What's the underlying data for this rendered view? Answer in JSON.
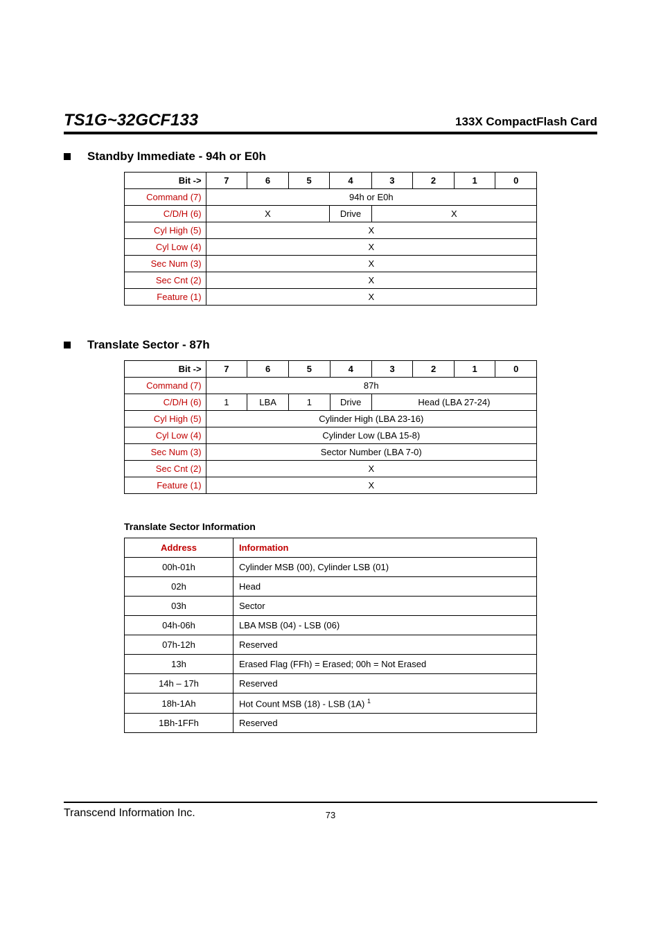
{
  "header": {
    "model": "TS1G~32GCF133",
    "product": "133X CompactFlash Card"
  },
  "section1": {
    "title": "Standby Immediate - 94h or E0h",
    "table": {
      "bit_label": "Bit ->",
      "bits": [
        "7",
        "6",
        "5",
        "4",
        "3",
        "2",
        "1",
        "0"
      ],
      "rows": [
        {
          "label": "Command (7)",
          "cells": [
            {
              "span": 8,
              "text": "94h or E0h"
            }
          ]
        },
        {
          "label": "C/D/H (6)",
          "cells": [
            {
              "span": 3,
              "text": "X"
            },
            {
              "span": 1,
              "text": "Drive"
            },
            {
              "span": 4,
              "text": "X"
            }
          ]
        },
        {
          "label": "Cyl High (5)",
          "cells": [
            {
              "span": 8,
              "text": "X"
            }
          ]
        },
        {
          "label": "Cyl Low (4)",
          "cells": [
            {
              "span": 8,
              "text": "X"
            }
          ]
        },
        {
          "label": "Sec Num (3)",
          "cells": [
            {
              "span": 8,
              "text": "X"
            }
          ]
        },
        {
          "label": "Sec Cnt (2)",
          "cells": [
            {
              "span": 8,
              "text": "X"
            }
          ]
        },
        {
          "label": "Feature (1)",
          "cells": [
            {
              "span": 8,
              "text": "X"
            }
          ]
        }
      ]
    }
  },
  "section2": {
    "title": "Translate Sector - 87h",
    "table": {
      "bit_label": "Bit ->",
      "bits": [
        "7",
        "6",
        "5",
        "4",
        "3",
        "2",
        "1",
        "0"
      ],
      "rows": [
        {
          "label": "Command (7)",
          "cells": [
            {
              "span": 8,
              "text": "87h"
            }
          ]
        },
        {
          "label": "C/D/H (6)",
          "cells": [
            {
              "span": 1,
              "text": "1"
            },
            {
              "span": 1,
              "text": "LBA"
            },
            {
              "span": 1,
              "text": "1"
            },
            {
              "span": 1,
              "text": "Drive"
            },
            {
              "span": 4,
              "text": "Head (LBA 27-24)"
            }
          ]
        },
        {
          "label": "Cyl High (5)",
          "cells": [
            {
              "span": 8,
              "text": "Cylinder High (LBA 23-16)"
            }
          ]
        },
        {
          "label": "Cyl Low (4)",
          "cells": [
            {
              "span": 8,
              "text": "Cylinder Low (LBA 15-8)"
            }
          ]
        },
        {
          "label": "Sec Num (3)",
          "cells": [
            {
              "span": 8,
              "text": "Sector Number (LBA 7-0)"
            }
          ]
        },
        {
          "label": "Sec Cnt (2)",
          "cells": [
            {
              "span": 8,
              "text": "X"
            }
          ]
        },
        {
          "label": "Feature (1)",
          "cells": [
            {
              "span": 8,
              "text": "X"
            }
          ]
        }
      ]
    }
  },
  "section3": {
    "title": "Translate Sector Information",
    "headers": {
      "addr": "Address",
      "info": "Information"
    },
    "rows": [
      {
        "addr": "00h-01h",
        "info": "Cylinder MSB (00), Cylinder LSB (01)"
      },
      {
        "addr": "02h",
        "info": "Head"
      },
      {
        "addr": "03h",
        "info": "Sector"
      },
      {
        "addr": "04h-06h",
        "info": "LBA MSB (04) - LSB (06)"
      },
      {
        "addr": "07h-12h",
        "info": "Reserved"
      },
      {
        "addr": "13h",
        "info": "Erased Flag (FFh) = Erased; 00h = Not Erased"
      },
      {
        "addr": "14h – 17h",
        "info": "Reserved"
      },
      {
        "addr": "18h-1Ah",
        "info": "Hot Count MSB (18) - LSB (1A)",
        "sup": "1"
      },
      {
        "addr": "1Bh-1FFh",
        "info": "Reserved"
      }
    ]
  },
  "footer": {
    "company": "Transcend Information Inc.",
    "page": "73"
  },
  "colors": {
    "label_red": "#c00000",
    "border": "#000000",
    "text": "#000000",
    "background": "#ffffff"
  }
}
